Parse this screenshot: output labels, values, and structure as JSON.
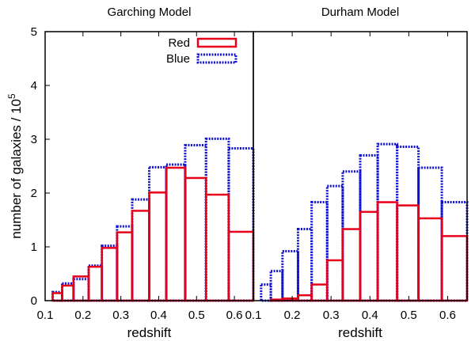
{
  "chart_data": [
    {
      "type": "bar",
      "title": "Garching Model",
      "xlabel": "redshift",
      "ylabel": "number of galaxies / 10",
      "ylabel_exponent": "5",
      "xlim": [
        0.1,
        0.65
      ],
      "ylim": [
        0,
        5
      ],
      "xticks": [
        "0.1",
        "0.2",
        "0.3",
        "0.4",
        "0.5",
        "0.6"
      ],
      "yticks": [
        "0",
        "1",
        "2",
        "3",
        "4",
        "5"
      ],
      "bin_edges": [
        0.12,
        0.145,
        0.175,
        0.215,
        0.25,
        0.29,
        0.33,
        0.375,
        0.42,
        0.47,
        0.525,
        0.585,
        0.65
      ],
      "series": [
        {
          "name": "Red",
          "color": "#e8001a",
          "style": "solid",
          "values": [
            0.14,
            0.28,
            0.45,
            0.63,
            0.98,
            1.27,
            1.67,
            2.01,
            2.47,
            2.28,
            1.97,
            1.28
          ]
        },
        {
          "name": "Blue",
          "color": "#1010d0",
          "style": "dotted",
          "values": [
            0.16,
            0.32,
            0.4,
            0.65,
            1.02,
            1.38,
            1.88,
            2.48,
            2.53,
            2.89,
            3.01,
            2.83
          ]
        }
      ],
      "legend": {
        "position": "top-right",
        "entries": [
          "Red",
          "Blue"
        ]
      }
    },
    {
      "type": "bar",
      "title": "Durham Model",
      "xlabel": "redshift",
      "xlim": [
        0.1,
        0.65
      ],
      "ylim": [
        0,
        5
      ],
      "xticks": [
        "0.1",
        "0.2",
        "0.3",
        "0.4",
        "0.5",
        "0.6"
      ],
      "bin_edges": [
        0.12,
        0.145,
        0.175,
        0.215,
        0.25,
        0.29,
        0.33,
        0.375,
        0.42,
        0.47,
        0.525,
        0.585,
        0.65
      ],
      "series": [
        {
          "name": "Red",
          "color": "#e8001a",
          "style": "solid",
          "values": [
            0.0,
            0.02,
            0.04,
            0.1,
            0.3,
            0.75,
            1.33,
            1.65,
            1.83,
            1.77,
            1.53,
            1.2
          ]
        },
        {
          "name": "Blue",
          "color": "#1010d0",
          "style": "dotted",
          "values": [
            0.3,
            0.55,
            0.92,
            1.33,
            1.83,
            2.13,
            2.4,
            2.7,
            2.91,
            2.86,
            2.47,
            1.83
          ]
        }
      ]
    }
  ]
}
